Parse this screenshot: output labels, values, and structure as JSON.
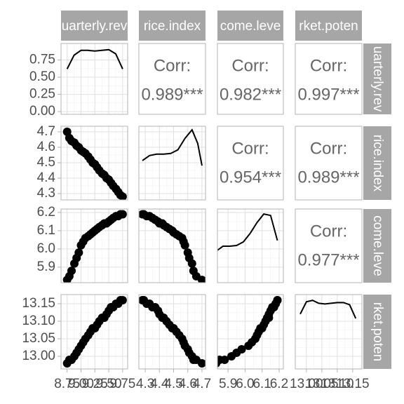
{
  "chart_data": {
    "type": "scatter-matrix",
    "corr_label": "Corr:",
    "correlations": [
      "0.989***",
      "0.982***",
      "0.997***",
      "0.954***",
      "0.989***",
      "0.977***"
    ],
    "variables": [
      {
        "name": "uarterly.rev",
        "values": [
          8.75,
          8.79,
          8.83,
          8.88,
          8.92,
          8.96,
          9.0,
          9.04,
          9.08,
          9.13,
          9.17,
          9.21,
          9.25,
          9.29,
          9.33,
          9.38,
          9.42,
          9.46,
          9.5,
          9.54,
          9.58,
          9.63,
          9.67,
          9.71,
          9.75
        ],
        "xlim": [
          8.64,
          9.84
        ],
        "xticks": [
          8.75,
          {
            "value": 9.0,
            "label": "9.00"
          },
          9.25,
          {
            "value": 9.5,
            "label": "9.50"
          },
          9.75
        ],
        "ylim": [
          -0.04,
          0.99
        ],
        "yticks": [
          {
            "value": 0,
            "label": "0.00"
          },
          0.25,
          {
            "value": 0.5,
            "label": "0.50"
          },
          0.75
        ],
        "density": {
          "x": [
            8.75,
            8.875,
            9.0,
            9.125,
            9.25,
            9.375,
            9.5,
            9.625,
            9.75
          ],
          "y": [
            0.62,
            0.82,
            0.89,
            0.89,
            0.88,
            0.89,
            0.9,
            0.84,
            0.62
          ]
        }
      },
      {
        "name": "rice.index",
        "values": [
          4.7,
          4.66,
          4.64,
          4.63,
          4.61,
          4.6,
          4.58,
          4.57,
          4.56,
          4.54,
          4.52,
          4.5,
          4.49,
          4.47,
          4.45,
          4.43,
          4.42,
          4.4,
          4.39,
          4.37,
          4.35,
          4.33,
          4.31,
          4.29,
          4.28
        ],
        "xlim": [
          4.255,
          4.725
        ],
        "xticks": [
          4.3,
          4.4,
          4.5,
          4.6,
          4.7
        ],
        "ylim": [
          4.259,
          4.736
        ],
        "yticks": [
          4.3,
          4.4,
          4.5,
          4.6,
          4.7
        ],
        "density": {
          "x": [
            4.28,
            4.33,
            4.38,
            4.43,
            4.48,
            4.53,
            4.58,
            4.63,
            4.67,
            4.7
          ],
          "y": [
            0.51,
            0.58,
            0.6,
            0.6,
            0.61,
            0.66,
            0.82,
            0.94,
            0.75,
            0.44
          ]
        }
      },
      {
        "name": "come.leve",
        "values": [
          5.83,
          5.85,
          5.88,
          5.92,
          5.95,
          5.98,
          6.02,
          6.04,
          6.06,
          6.07,
          6.08,
          6.09,
          6.1,
          6.11,
          6.12,
          6.13,
          6.14,
          6.14,
          6.15,
          6.16,
          6.17,
          6.18,
          6.18,
          6.19,
          6.19
        ],
        "xlim": [
          5.8375,
          6.225
        ],
        "xticks": [
          5.9,
          {
            "value": 6.0,
            "label": "6.0"
          },
          6.1,
          6.2
        ],
        "ylim": [
          5.815,
          6.219
        ],
        "yticks": [
          5.9,
          {
            "value": 6.0,
            "label": "6.0"
          },
          6.1,
          6.2
        ],
        "density": {
          "x": [
            5.83,
            5.87,
            5.91,
            5.95,
            5.99,
            6.03,
            6.07,
            6.11,
            6.15,
            6.19
          ],
          "y": [
            0.4,
            0.47,
            0.47,
            0.48,
            0.53,
            0.65,
            0.8,
            0.92,
            0.9,
            0.55
          ]
        }
      },
      {
        "name": "rket.poten",
        "values": [
          12.98,
          12.99,
          12.99,
          13.0,
          13.01,
          13.02,
          13.03,
          13.04,
          13.05,
          13.06,
          13.07,
          13.08,
          13.08,
          13.09,
          13.1,
          13.11,
          13.11,
          13.12,
          13.13,
          13.14,
          13.14,
          13.15,
          13.15,
          13.16,
          13.16
        ],
        "xlim": [
          12.964,
          13.18
        ],
        "xticks": [
          {
            "value": 13.0,
            "label": "13.00"
          },
          13.05,
          {
            "value": 13.1,
            "label": "13.10"
          },
          13.15
        ],
        "ylim": [
          12.964,
          13.176
        ],
        "yticks": [
          {
            "value": 13.0,
            "label": "13.00"
          },
          13.05,
          {
            "value": 13.1,
            "label": "13.10"
          },
          13.15
        ],
        "density": {
          "x": [
            12.98,
            13.0,
            13.02,
            13.04,
            13.06,
            13.08,
            13.1,
            13.12,
            13.14,
            13.16
          ],
          "y": [
            0.72,
            0.89,
            0.91,
            0.87,
            0.86,
            0.87,
            0.88,
            0.88,
            0.85,
            0.66
          ]
        }
      }
    ]
  }
}
